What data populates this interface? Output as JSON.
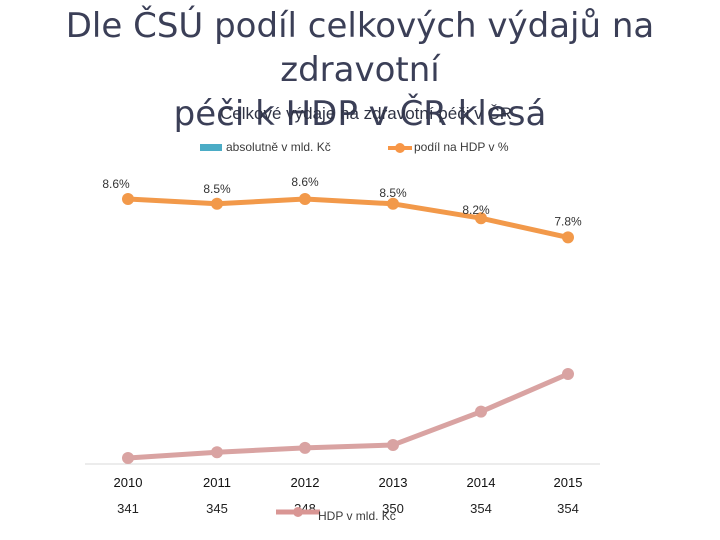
{
  "slide": {
    "title_line1": "Dle ČSÚ podíl celkových výdajů na zdravotní",
    "title_line2": "péči k HDP v ČR klesá"
  },
  "chart_data": {
    "type": "line",
    "title": "Celkové výdaje na zdravotní péči v ČR",
    "categories": [
      "2010",
      "2011",
      "2012",
      "2013",
      "2014",
      "2015"
    ],
    "legend": {
      "placement": "top",
      "entries": [
        {
          "name": "absolutně v mld. Kč",
          "color": "#4bacc6",
          "marker": "bar"
        },
        {
          "name": "podíl na HDP v %",
          "color": "#f79646",
          "marker": "line"
        },
        {
          "name": "HDP v mld. Kč",
          "color": "#d99694",
          "marker": "line"
        }
      ]
    },
    "absolute_values": [
      "341",
      "345",
      "348",
      "350",
      "354",
      "354"
    ],
    "series": [
      {
        "name": "podíl na HDP v %",
        "color": "#f2994a",
        "values": [
          8.6,
          8.5,
          8.6,
          8.5,
          8.2,
          7.8
        ],
        "labels": [
          "8.6%",
          "8.5%",
          "8.6%",
          "8.5%",
          "8.2%",
          "7.8%"
        ]
      },
      {
        "name": "HDP v mld. Kč",
        "color": "#d9a3a2",
        "values": [
          3990,
          4030,
          4060,
          4080,
          4310,
          4570
        ]
      }
    ],
    "grid": false
  }
}
